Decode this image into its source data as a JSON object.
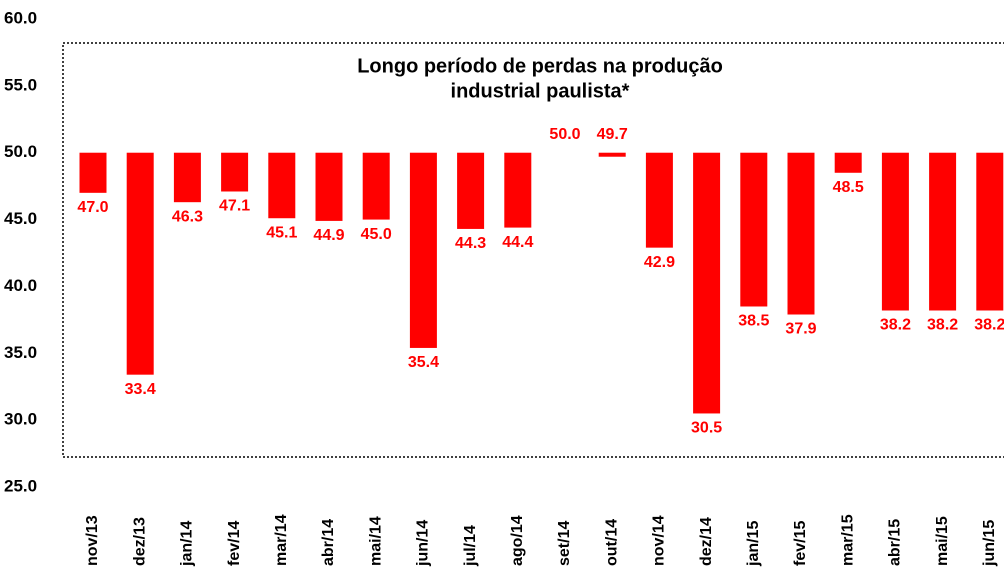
{
  "chart_data": {
    "type": "bar",
    "annotation": "Longo período de perdas na produção",
    "annotation_line2": "industrial paulista*",
    "categories": [
      "nov/13",
      "dez/13",
      "jan/14",
      "fev/14",
      "mar/14",
      "abr/14",
      "mai/14",
      "jun/14",
      "jul/14",
      "ago/14",
      "set/14",
      "out/14",
      "nov/14",
      "dez/14",
      "jan/15",
      "fev/15",
      "mar/15",
      "abr/15",
      "mai/15",
      "jun/15"
    ],
    "values": [
      47.0,
      33.4,
      46.3,
      47.1,
      45.1,
      44.9,
      45.0,
      35.4,
      44.3,
      44.4,
      50.0,
      49.7,
      42.9,
      30.5,
      38.5,
      37.9,
      48.5,
      38.2,
      38.2,
      38.2
    ],
    "value_labels": [
      "47.0",
      "33.4",
      "46.3",
      "47.1",
      "45.1",
      "44.9",
      "45.0",
      "35.4",
      "44.3",
      "44.4",
      "50.0",
      "49.7",
      "42.9",
      "30.5",
      "38.5",
      "37.9",
      "48.5",
      "38.2",
      "38.2",
      "38.2"
    ],
    "color": "#ff0000",
    "bar_base": 50,
    "ylim": [
      25,
      60
    ],
    "yticks": [
      {
        "value": 25,
        "label": "25.0"
      },
      {
        "value": 30,
        "label": "30.0"
      },
      {
        "value": 35,
        "label": "35.0"
      },
      {
        "value": 40,
        "label": "40.0"
      },
      {
        "value": 45,
        "label": "45.0"
      },
      {
        "value": 50,
        "label": "50.0"
      },
      {
        "value": 55,
        "label": "55.0"
      },
      {
        "value": 60,
        "label": "60.0"
      }
    ]
  }
}
